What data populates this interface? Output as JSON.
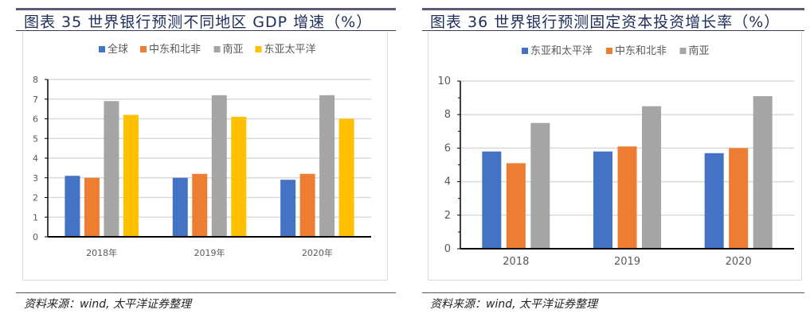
{
  "chart_data": [
    {
      "type": "bar",
      "title": "图表 35 世界银行预测不同地区 GDP 增速（%）",
      "categories": [
        "2018年",
        "2019年",
        "2020年"
      ],
      "ylim": [
        0,
        8
      ],
      "yticks": [
        0,
        1,
        2,
        3,
        4,
        5,
        6,
        7,
        8
      ],
      "grid": true,
      "legend": "top",
      "series": [
        {
          "name": "全球",
          "color": "#4472c4",
          "values": [
            3.1,
            3.0,
            2.9
          ]
        },
        {
          "name": "中东和北非",
          "color": "#ed7d31",
          "values": [
            3.0,
            3.2,
            3.2
          ]
        },
        {
          "name": "南亚",
          "color": "#a5a5a5",
          "values": [
            6.9,
            7.2,
            7.2
          ]
        },
        {
          "name": "东亚太平洋",
          "color": "#ffc000",
          "values": [
            6.2,
            6.1,
            6.0
          ]
        }
      ],
      "source": "资料来源：wind, 太平洋证券整理"
    },
    {
      "type": "bar",
      "title": "图表 36 世界银行预测固定资本投资增长率（%）",
      "categories": [
        "2018",
        "2019",
        "2020"
      ],
      "ylim": [
        0,
        10
      ],
      "yticks": [
        0,
        2,
        4,
        6,
        8,
        10
      ],
      "grid": true,
      "legend": "top",
      "series": [
        {
          "name": "东亚和太平洋",
          "color": "#4472c4",
          "values": [
            5.8,
            5.8,
            5.7
          ]
        },
        {
          "name": "中东和北非",
          "color": "#ed7d31",
          "values": [
            5.1,
            6.1,
            6.0
          ]
        },
        {
          "name": "南亚",
          "color": "#a5a5a5",
          "values": [
            7.5,
            8.5,
            9.1
          ]
        }
      ],
      "source": "资料来源：wind, 太平洋证券整理"
    }
  ]
}
